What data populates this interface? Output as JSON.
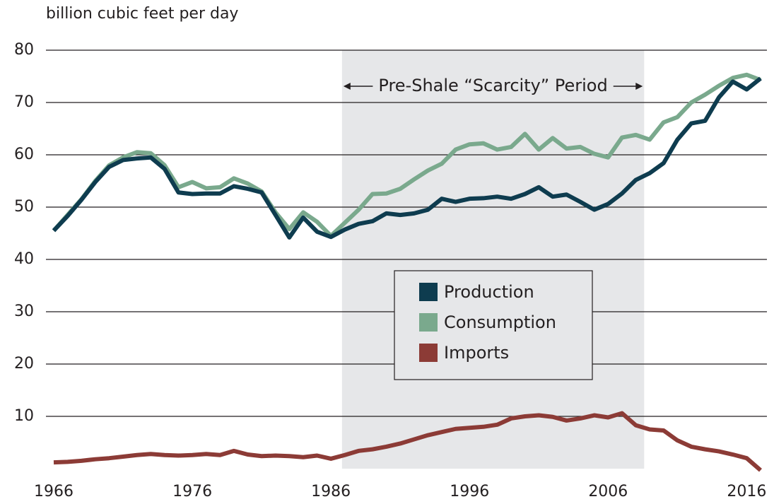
{
  "chart_data": {
    "type": "line",
    "y_label": "billion cubic feet per day",
    "annotation": {
      "text": "Pre-Shale “Scarcity” Period",
      "x_range": [
        1986.8,
        2008.6
      ]
    },
    "x": [
      1966,
      1967,
      1968,
      1969,
      1970,
      1971,
      1972,
      1973,
      1974,
      1975,
      1976,
      1977,
      1978,
      1979,
      1980,
      1981,
      1982,
      1983,
      1984,
      1985,
      1986,
      1987,
      1988,
      1989,
      1990,
      1991,
      1992,
      1993,
      1994,
      1995,
      1996,
      1997,
      1998,
      1999,
      2000,
      2001,
      2002,
      2003,
      2004,
      2005,
      2006,
      2007,
      2008,
      2009,
      2010,
      2011,
      2012,
      2013,
      2014,
      2015,
      2016,
      2017
    ],
    "series": [
      {
        "name": "Production",
        "color": "#0e3c4f",
        "values": [
          45.5,
          48.3,
          51.4,
          54.8,
          57.7,
          59,
          59.3,
          59.5,
          57.3,
          52.8,
          52.5,
          52.6,
          52.6,
          54,
          53.5,
          52.8,
          48.5,
          44.2,
          48,
          45.3,
          44.3,
          45.7,
          46.8,
          47.3,
          48.8,
          48.5,
          48.8,
          49.5,
          51.6,
          51,
          51.6,
          51.7,
          52,
          51.6,
          52.5,
          53.8,
          52,
          52.4,
          51,
          49.5,
          50.6,
          52.6,
          55.2,
          56.5,
          58.4,
          62.9,
          66,
          66.5,
          71,
          74,
          72.5,
          74.6
        ]
      },
      {
        "name": "Consumption",
        "color": "#7aa98d",
        "values": [
          45.5,
          48.5,
          51.5,
          55,
          58,
          59.5,
          60.5,
          60.3,
          58,
          53.8,
          54.8,
          53.6,
          53.8,
          55.5,
          54.5,
          53,
          49,
          45.8,
          49,
          47.2,
          44.5,
          47,
          49.5,
          52.5,
          52.6,
          53.5,
          55.3,
          57,
          58.3,
          61,
          62,
          62.2,
          61,
          61.5,
          64,
          61,
          63.2,
          61.2,
          61.5,
          60.2,
          59.5,
          63.3,
          63.8,
          62.9,
          66.2,
          67.2,
          70,
          71.5,
          73.2,
          74.7,
          75.3,
          74.3
        ]
      },
      {
        "name": "Imports",
        "color": "#8c3b36",
        "values": [
          1.2,
          1.3,
          1.5,
          1.8,
          2.0,
          2.3,
          2.6,
          2.8,
          2.6,
          2.5,
          2.6,
          2.8,
          2.6,
          3.4,
          2.7,
          2.4,
          2.5,
          2.4,
          2.2,
          2.5,
          1.9,
          2.6,
          3.4,
          3.7,
          4.2,
          4.8,
          5.6,
          6.4,
          7.0,
          7.6,
          7.8,
          8.0,
          8.4,
          9.6,
          10.0,
          10.2,
          9.9,
          9.2,
          9.6,
          10.2,
          9.8,
          10.6,
          8.3,
          7.5,
          7.3,
          5.4,
          4.2,
          3.7,
          3.3,
          2.7,
          2.0,
          -0.3
        ]
      }
    ],
    "xlim": [
      1966,
      2017
    ],
    "xticks": [
      1966,
      1976,
      1986,
      1996,
      2006,
      2016
    ],
    "ylim": [
      0,
      80
    ],
    "yticks": [
      10,
      20,
      30,
      40,
      50,
      60,
      70,
      80
    ],
    "grid": true,
    "legend": "center"
  }
}
